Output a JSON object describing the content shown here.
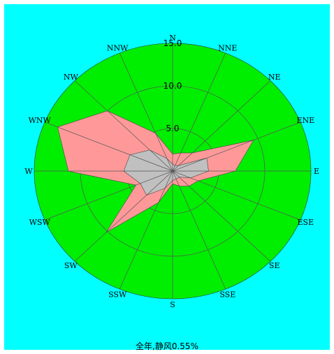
{
  "chart_data": {
    "type": "radar",
    "title": "全年,静风0.55%",
    "directions": [
      "N",
      "NNE",
      "NE",
      "ENE",
      "E",
      "ESE",
      "SE",
      "SSE",
      "S",
      "SSW",
      "SW",
      "WSW",
      "W",
      "WNW",
      "NW",
      "NNW"
    ],
    "rings": [
      5.0,
      10.0,
      15.0
    ],
    "rlim": [
      0,
      15
    ],
    "series": [
      {
        "values": [
          2.0,
          2.3,
          3.0,
          9.5,
          6.8,
          3.0,
          2.5,
          1.9,
          1.5,
          4.0,
          10.2,
          4.3,
          11.3,
          13.5,
          10.0,
          4.8
        ]
      },
      {
        "values": [
          0.8,
          0.7,
          0.9,
          4.0,
          3.9,
          2.1,
          1.0,
          1.0,
          1.1,
          2.2,
          4.0,
          3.8,
          5.3,
          5.0,
          3.5,
          1.6
        ]
      }
    ],
    "colors": {
      "background": "#00ffff",
      "rose_fill": "#00ee00",
      "outer_series": "#ff9999",
      "inner_series": "#c0c0c0",
      "grid": "#555555"
    }
  }
}
